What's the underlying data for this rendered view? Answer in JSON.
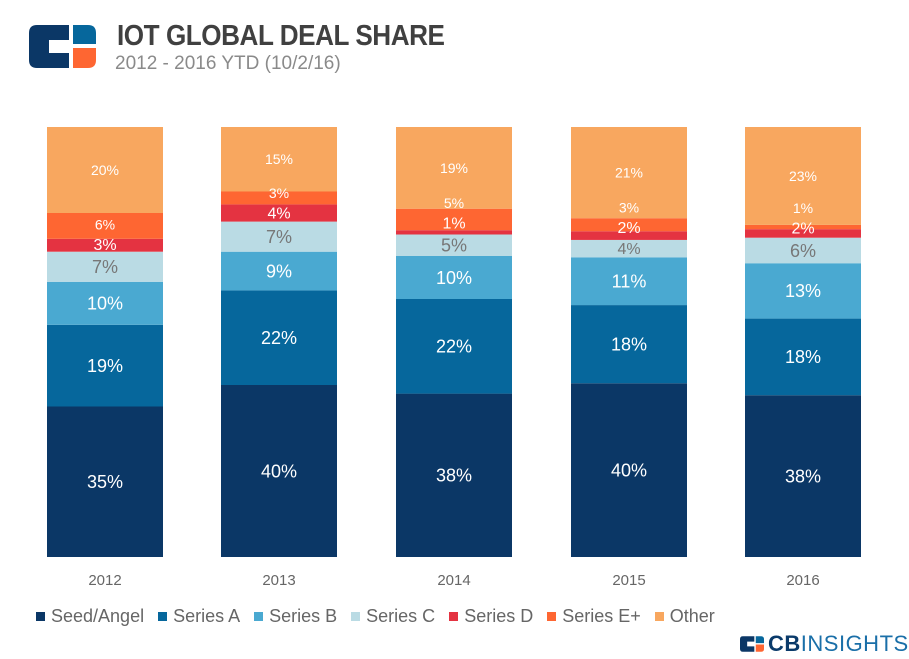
{
  "header": {
    "title": "IOT GLOBAL DEAL SHARE",
    "subtitle": "2012 -  2016 YTD (10/2/16)"
  },
  "brand": {
    "logo_text": "CBINSIGHTS",
    "strong": "CB",
    "rest": "INSIGHTS"
  },
  "chart_data": {
    "type": "bar",
    "stacked": true,
    "percent_stacked": true,
    "title": "IOT GLOBAL DEAL SHARE",
    "subtitle": "2012 -  2016 YTD (10/2/16)",
    "categories": [
      "2012",
      "2013",
      "2014",
      "2015",
      "2016"
    ],
    "legend_position": "bottom",
    "grid": false,
    "series": [
      {
        "name": "Seed/Angel",
        "color": "#0b3766",
        "label_color": "#ffffff",
        "values": [
          35,
          40,
          38,
          40,
          38
        ]
      },
      {
        "name": "Series A",
        "color": "#06679c",
        "label_color": "#ffffff",
        "values": [
          19,
          22,
          22,
          18,
          18
        ]
      },
      {
        "name": "Series B",
        "color": "#4aa9d1",
        "label_color": "#ffffff",
        "values": [
          10,
          9,
          10,
          11,
          13
        ]
      },
      {
        "name": "Series C",
        "color": "#badbe4",
        "label_color": "#777777",
        "values": [
          7,
          7,
          5,
          4,
          6
        ]
      },
      {
        "name": "Series D",
        "color": "#e43341",
        "label_color": "#ffffff",
        "values": [
          3,
          4,
          1,
          2,
          2
        ]
      },
      {
        "name": "Series E+",
        "color": "#fe6632",
        "label_color": "#ffffff",
        "values": [
          6,
          3,
          5,
          3,
          1
        ]
      },
      {
        "name": "Other",
        "color": "#f8a75f",
        "label_color": "#ffffff",
        "values": [
          20,
          15,
          19,
          21,
          23
        ]
      }
    ]
  }
}
